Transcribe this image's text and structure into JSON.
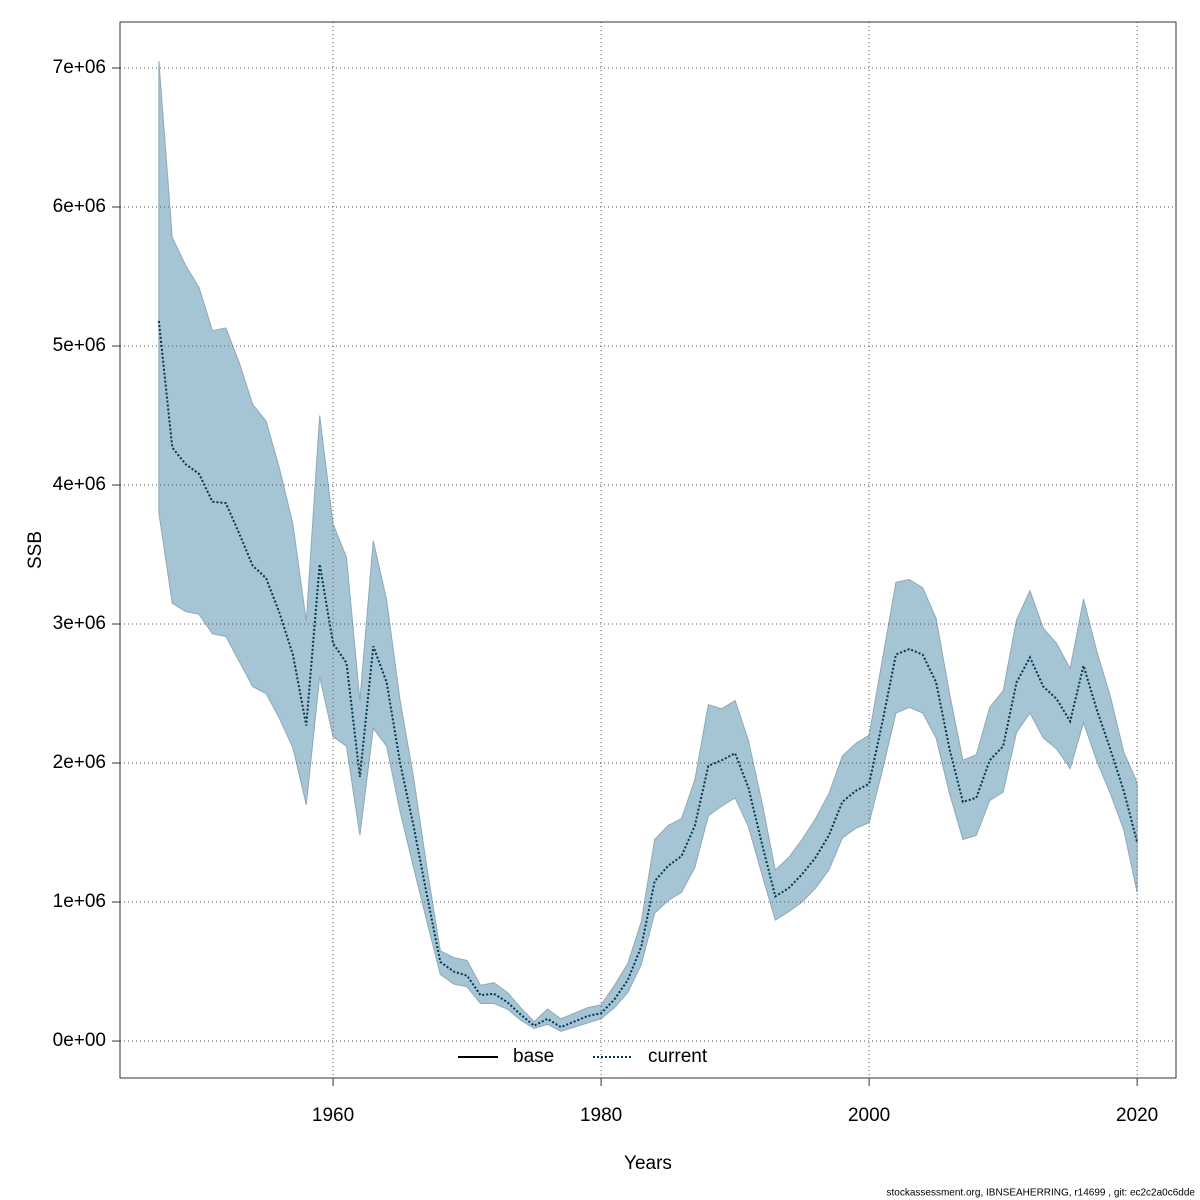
{
  "chart_data": {
    "type": "line",
    "xlabel": "Years",
    "ylabel": "SSB",
    "footer": "stockassessment.org, IBNSEAHERRING, r14699 , git: ec2c2a0c6dde",
    "x": [
      1947,
      1948,
      1949,
      1950,
      1951,
      1952,
      1953,
      1954,
      1955,
      1956,
      1957,
      1958,
      1959,
      1960,
      1961,
      1962,
      1963,
      1964,
      1965,
      1966,
      1967,
      1968,
      1969,
      1970,
      1971,
      1972,
      1973,
      1974,
      1975,
      1976,
      1977,
      1978,
      1979,
      1980,
      1981,
      1982,
      1983,
      1984,
      1985,
      1986,
      1987,
      1988,
      1989,
      1990,
      1991,
      1992,
      1993,
      1994,
      1995,
      1996,
      1997,
      1998,
      1999,
      2000,
      2001,
      2002,
      2003,
      2004,
      2005,
      2006,
      2007,
      2008,
      2009,
      2010,
      2011,
      2012,
      2013,
      2014,
      2015,
      2016,
      2017,
      2018,
      2019,
      2020
    ],
    "series": [
      {
        "name": "current",
        "color": "#00374f",
        "dash": "dotted",
        "values": [
          5180000,
          4270000,
          4150000,
          4080000,
          3880000,
          3870000,
          3650000,
          3420000,
          3330000,
          3080000,
          2780000,
          2270000,
          3430000,
          2860000,
          2720000,
          1900000,
          2840000,
          2580000,
          2000000,
          1550000,
          1050000,
          570000,
          500000,
          470000,
          330000,
          340000,
          280000,
          190000,
          110000,
          160000,
          100000,
          140000,
          180000,
          200000,
          300000,
          440000,
          680000,
          1150000,
          1260000,
          1330000,
          1550000,
          1980000,
          2020000,
          2070000,
          1820000,
          1420000,
          1040000,
          1100000,
          1200000,
          1320000,
          1480000,
          1720000,
          1800000,
          1850000,
          2300000,
          2780000,
          2820000,
          2780000,
          2580000,
          2100000,
          1720000,
          1750000,
          2020000,
          2120000,
          2580000,
          2760000,
          2550000,
          2460000,
          2300000,
          2700000,
          2380000,
          2100000,
          1800000,
          1430000
        ],
        "upper": [
          7050000,
          5780000,
          5580000,
          5420000,
          5110000,
          5130000,
          4880000,
          4580000,
          4460000,
          4120000,
          3720000,
          3020000,
          4500000,
          3720000,
          3480000,
          2450000,
          3600000,
          3170000,
          2450000,
          1900000,
          1250000,
          650000,
          600000,
          580000,
          400000,
          420000,
          350000,
          240000,
          140000,
          230000,
          160000,
          200000,
          240000,
          260000,
          400000,
          560000,
          860000,
          1450000,
          1550000,
          1600000,
          1880000,
          2420000,
          2390000,
          2450000,
          2160000,
          1720000,
          1230000,
          1320000,
          1450000,
          1600000,
          1780000,
          2050000,
          2140000,
          2200000,
          2750000,
          3300000,
          3320000,
          3260000,
          3040000,
          2500000,
          2020000,
          2060000,
          2400000,
          2520000,
          3030000,
          3240000,
          2970000,
          2860000,
          2680000,
          3180000,
          2800000,
          2480000,
          2080000,
          1860000
        ],
        "lower": [
          3800000,
          3150000,
          3090000,
          3070000,
          2930000,
          2910000,
          2730000,
          2550000,
          2500000,
          2320000,
          2110000,
          1700000,
          2620000,
          2190000,
          2120000,
          1480000,
          2250000,
          2120000,
          1650000,
          1250000,
          860000,
          480000,
          410000,
          390000,
          270000,
          270000,
          230000,
          150000,
          90000,
          120000,
          70000,
          100000,
          130000,
          160000,
          240000,
          350000,
          550000,
          920000,
          1010000,
          1070000,
          1250000,
          1620000,
          1690000,
          1750000,
          1540000,
          1200000,
          870000,
          930000,
          1000000,
          1100000,
          1230000,
          1460000,
          1530000,
          1570000,
          1950000,
          2360000,
          2400000,
          2360000,
          2180000,
          1780000,
          1450000,
          1480000,
          1730000,
          1790000,
          2220000,
          2360000,
          2180000,
          2100000,
          1960000,
          2290000,
          2010000,
          1780000,
          1520000,
          1070000
        ],
        "band_color": "#a5c4d4"
      }
    ],
    "legend": [
      {
        "name": "base",
        "color": "#000000",
        "dash": "solid"
      },
      {
        "name": "current",
        "color": "#00374f",
        "dash": "dotted"
      }
    ],
    "legend_position": "bottom",
    "xlim": [
      1944.1,
      2022.9
    ],
    "ylim": [
      -266000,
      7331000
    ],
    "xticks": [
      1960,
      1980,
      2000,
      2020
    ],
    "yticks": [
      {
        "value": 0,
        "label": "0e+00"
      },
      {
        "value": 1000000,
        "label": "1e+06"
      },
      {
        "value": 2000000,
        "label": "2e+06"
      },
      {
        "value": 3000000,
        "label": "3e+06"
      },
      {
        "value": 4000000,
        "label": "4e+06"
      },
      {
        "value": 5000000,
        "label": "5e+06"
      },
      {
        "value": 6000000,
        "label": "6e+06"
      },
      {
        "value": 7000000,
        "label": "7e+06"
      }
    ],
    "grid": true
  }
}
